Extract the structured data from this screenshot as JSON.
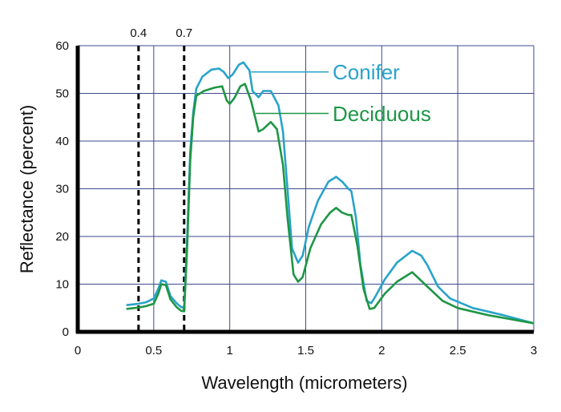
{
  "chart_data": {
    "type": "line",
    "xlabel": "Wavelength (micrometers)",
    "ylabel": "Reflectance (percent)",
    "xlim": [
      0,
      3
    ],
    "ylim": [
      0,
      60
    ],
    "x_ticks": [
      "0",
      "0.5",
      "1",
      "1.5",
      "2",
      "2.5",
      "3"
    ],
    "y_ticks": [
      "0",
      "10",
      "20",
      "30",
      "40",
      "50",
      "60"
    ],
    "grid": true,
    "reference_lines": [
      {
        "x": 0.4,
        "label": "0.4"
      },
      {
        "x": 0.7,
        "label": "0.7"
      }
    ],
    "series": [
      {
        "name": "Conifer",
        "color": "#29a3c9",
        "points": [
          [
            0.32,
            5.6
          ],
          [
            0.4,
            5.9
          ],
          [
            0.45,
            6.2
          ],
          [
            0.5,
            7.0
          ],
          [
            0.53,
            9.0
          ],
          [
            0.55,
            10.8
          ],
          [
            0.58,
            10.5
          ],
          [
            0.61,
            7.5
          ],
          [
            0.65,
            6.0
          ],
          [
            0.68,
            5.2
          ],
          [
            0.7,
            5.0
          ],
          [
            0.72,
            20
          ],
          [
            0.74,
            38
          ],
          [
            0.76,
            46
          ],
          [
            0.78,
            51
          ],
          [
            0.82,
            53.5
          ],
          [
            0.88,
            55.0
          ],
          [
            0.93,
            55.2
          ],
          [
            0.96,
            54.5
          ],
          [
            0.99,
            53.2
          ],
          [
            1.02,
            54.0
          ],
          [
            1.06,
            56.0
          ],
          [
            1.09,
            56.5
          ],
          [
            1.13,
            54.8
          ],
          [
            1.15,
            50.5
          ],
          [
            1.19,
            49.2
          ],
          [
            1.22,
            50.5
          ],
          [
            1.27,
            50.5
          ],
          [
            1.32,
            47.5
          ],
          [
            1.35,
            42.0
          ],
          [
            1.38,
            30.0
          ],
          [
            1.41,
            17.5
          ],
          [
            1.45,
            14.5
          ],
          [
            1.48,
            16.0
          ],
          [
            1.52,
            22.0
          ],
          [
            1.58,
            27.5
          ],
          [
            1.65,
            31.5
          ],
          [
            1.7,
            32.5
          ],
          [
            1.74,
            31.5
          ],
          [
            1.78,
            30.0
          ],
          [
            1.8,
            29.5
          ],
          [
            1.83,
            24.0
          ],
          [
            1.86,
            14.0
          ],
          [
            1.9,
            6.5
          ],
          [
            1.93,
            6.0
          ],
          [
            1.96,
            7.5
          ],
          [
            2.02,
            11.0
          ],
          [
            2.1,
            14.5
          ],
          [
            2.2,
            17.0
          ],
          [
            2.26,
            16.0
          ],
          [
            2.3,
            14.0
          ],
          [
            2.37,
            9.5
          ],
          [
            2.45,
            7.0
          ],
          [
            2.6,
            5.0
          ],
          [
            2.8,
            3.5
          ],
          [
            3.0,
            1.8
          ]
        ]
      },
      {
        "name": "Deciduous",
        "color": "#1e9645",
        "points": [
          [
            0.32,
            4.8
          ],
          [
            0.4,
            5.1
          ],
          [
            0.45,
            5.4
          ],
          [
            0.5,
            5.9
          ],
          [
            0.53,
            8.0
          ],
          [
            0.55,
            10.0
          ],
          [
            0.58,
            9.8
          ],
          [
            0.61,
            6.8
          ],
          [
            0.65,
            5.2
          ],
          [
            0.68,
            4.4
          ],
          [
            0.7,
            4.3
          ],
          [
            0.72,
            18
          ],
          [
            0.74,
            36
          ],
          [
            0.76,
            45
          ],
          [
            0.78,
            49.5
          ],
          [
            0.83,
            50.5
          ],
          [
            0.9,
            51.2
          ],
          [
            0.95,
            51.5
          ],
          [
            0.98,
            48.5
          ],
          [
            1.0,
            47.8
          ],
          [
            1.03,
            49.0
          ],
          [
            1.07,
            51.5
          ],
          [
            1.1,
            52.0
          ],
          [
            1.14,
            48.5
          ],
          [
            1.19,
            42.0
          ],
          [
            1.22,
            42.5
          ],
          [
            1.27,
            44.0
          ],
          [
            1.31,
            42.5
          ],
          [
            1.35,
            35.0
          ],
          [
            1.38,
            24.0
          ],
          [
            1.42,
            12.0
          ],
          [
            1.45,
            10.5
          ],
          [
            1.48,
            11.5
          ],
          [
            1.53,
            17.5
          ],
          [
            1.6,
            22.5
          ],
          [
            1.66,
            25.0
          ],
          [
            1.7,
            26.0
          ],
          [
            1.74,
            25.0
          ],
          [
            1.78,
            24.5
          ],
          [
            1.8,
            24.5
          ],
          [
            1.84,
            18.0
          ],
          [
            1.88,
            9.0
          ],
          [
            1.92,
            4.8
          ],
          [
            1.95,
            5.0
          ],
          [
            2.02,
            8.0
          ],
          [
            2.1,
            10.5
          ],
          [
            2.2,
            12.5
          ],
          [
            2.3,
            9.5
          ],
          [
            2.4,
            6.5
          ],
          [
            2.5,
            5.0
          ],
          [
            2.7,
            3.5
          ],
          [
            3.0,
            1.8
          ]
        ]
      }
    ]
  }
}
